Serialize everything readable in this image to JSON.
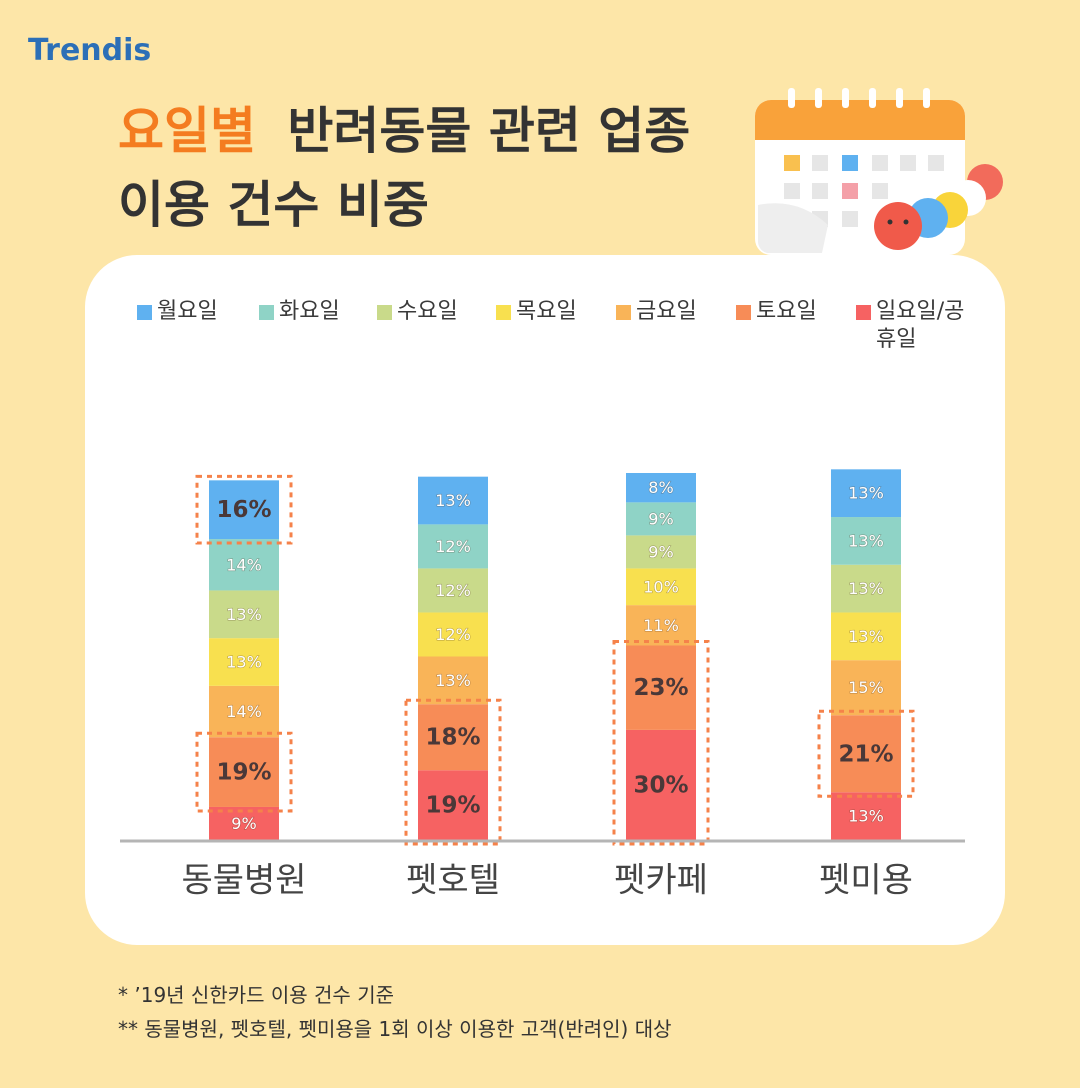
{
  "brand": "Trendis",
  "chart_data": {
    "type": "stacked-bar",
    "title_accent": "요일별",
    "title_line1": "반려동물 관련 업종",
    "title_line2": "이용 건수 비중",
    "categories": [
      "동물병원",
      "펫호텔",
      "펫카페",
      "펫미용"
    ],
    "series": [
      {
        "name": "월요일",
        "color": "#5fb1f0",
        "values": [
          16,
          13,
          8,
          13
        ],
        "value_labels": [
          "16%",
          "13%",
          "8%",
          "13%"
        ],
        "highlight": [
          0
        ]
      },
      {
        "name": "화요일",
        "color": "#8fd3c6",
        "values": [
          14,
          12,
          9,
          13
        ],
        "value_labels": [
          "14%",
          "12%",
          "9%",
          "13%"
        ],
        "highlight": []
      },
      {
        "name": "수요일",
        "color": "#c9da8a",
        "values": [
          13,
          12,
          9,
          13
        ],
        "value_labels": [
          "13%",
          "12%",
          "9%",
          "13%"
        ],
        "highlight": []
      },
      {
        "name": "목요일",
        "color": "#f8e04f",
        "values": [
          13,
          12,
          10,
          13
        ],
        "value_labels": [
          "13%",
          "12%",
          "10%",
          "13%"
        ],
        "highlight": []
      },
      {
        "name": "금요일",
        "color": "#f9b458",
        "values": [
          14,
          13,
          11,
          15
        ],
        "value_labels": [
          "14%",
          "13%",
          "11%",
          "15%"
        ],
        "highlight": []
      },
      {
        "name": "토요일",
        "color": "#f78c57",
        "values": [
          19,
          18,
          23,
          21
        ],
        "value_labels": [
          "19%",
          "18%",
          "23%",
          "21%"
        ],
        "highlight": [
          0,
          1,
          2,
          3
        ]
      },
      {
        "name": "일요일/공휴일",
        "color": "#f66262",
        "values": [
          9,
          19,
          30,
          13
        ],
        "value_labels": [
          "9%",
          "19%",
          "30%",
          "13%"
        ],
        "highlight": [
          1,
          2
        ]
      }
    ],
    "notes": [
      "* ’19년 신한카드 이용 건수 기준",
      "**  동물병원, 펫호텔, 펫미용을 1회 이상 이용한 고객(반려인) 대상"
    ]
  }
}
